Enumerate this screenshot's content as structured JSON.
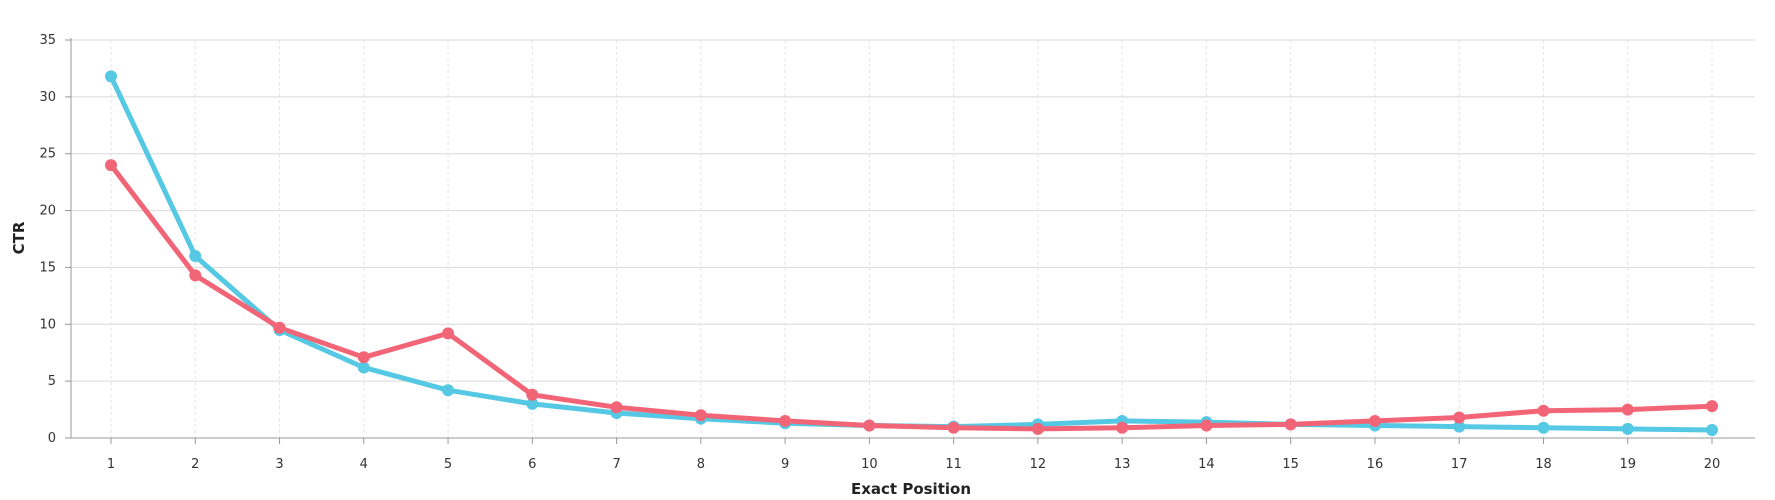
{
  "chart_data": {
    "type": "line",
    "title": "",
    "xlabel": "Exact Position",
    "ylabel": "CTR",
    "categories": [
      "1",
      "2",
      "3",
      "4",
      "5",
      "6",
      "7",
      "8",
      "9",
      "10",
      "11",
      "12",
      "13",
      "14",
      "15",
      "16",
      "17",
      "18",
      "19",
      "20"
    ],
    "ylim": [
      0,
      35
    ],
    "yticks": [
      0,
      5,
      10,
      15,
      20,
      25,
      30,
      35
    ],
    "grid": true,
    "legend": "none",
    "series": [
      {
        "color": "#55c8e3",
        "values": [
          31.8,
          16.0,
          9.5,
          6.2,
          4.2,
          3.0,
          2.2,
          1.7,
          1.3,
          1.1,
          1.0,
          1.2,
          1.5,
          1.4,
          1.2,
          1.1,
          1.0,
          0.9,
          0.8,
          0.7
        ]
      },
      {
        "color": "#f26577",
        "values": [
          24.0,
          14.3,
          9.7,
          7.1,
          9.2,
          3.8,
          2.7,
          2.0,
          1.5,
          1.1,
          0.9,
          0.8,
          0.9,
          1.1,
          1.2,
          1.5,
          1.8,
          2.4,
          2.5,
          2.8
        ]
      }
    ]
  }
}
